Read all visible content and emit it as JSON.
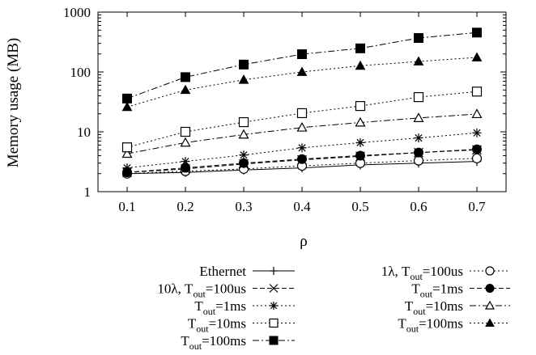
{
  "chart_data": {
    "type": "line",
    "ylabel": "Memory usage (MB)",
    "xlabel": "ρ",
    "x": [
      0.1,
      0.2,
      0.3,
      0.4,
      0.5,
      0.6,
      0.7
    ],
    "xlim": [
      0.05,
      0.75
    ],
    "ylim": [
      1,
      1000
    ],
    "yscale": "log",
    "xticks": [
      "0.1",
      "0.2",
      "0.3",
      "0.4",
      "0.5",
      "0.6",
      "0.7"
    ],
    "yticks": [
      "1",
      "10",
      "100",
      "1000"
    ],
    "grid": false,
    "legend_position": "below",
    "series": [
      {
        "name": "Ethernet",
        "marker": "plus",
        "dash": "",
        "values": [
          2.0,
          2.1,
          2.3,
          2.5,
          2.8,
          3.0,
          3.2
        ]
      },
      {
        "name": "1λ, Tout=100us",
        "marker": "circle-open",
        "dash": "2,3",
        "values": [
          2.0,
          2.2,
          2.4,
          2.7,
          3.0,
          3.3,
          3.6
        ]
      },
      {
        "name": "10λ, Tout=100us",
        "marker": "x",
        "dash": "6,3",
        "values": [
          2.1,
          2.4,
          2.9,
          3.4,
          3.9,
          4.5,
          5.0
        ]
      },
      {
        "name": "Tout=1ms",
        "marker": "circle-filled",
        "dash": "6,3",
        "values": [
          2.1,
          2.5,
          3.0,
          3.5,
          4.0,
          4.5,
          5.1
        ]
      },
      {
        "name": "Tout=1ms",
        "marker": "star",
        "dash": "2,3",
        "values": [
          2.5,
          3.2,
          4.1,
          5.4,
          6.6,
          7.9,
          9.6
        ]
      },
      {
        "name": "Tout=10ms",
        "marker": "triangle-open",
        "dash": "8,3,2,3",
        "values": [
          4.3,
          6.6,
          9.0,
          11.8,
          14.3,
          17.0,
          19.8
        ]
      },
      {
        "name": "Tout=10ms",
        "marker": "square-open",
        "dash": "2,3",
        "values": [
          5.5,
          10.0,
          14.5,
          20.5,
          27.0,
          38.0,
          47.0
        ]
      },
      {
        "name": "Tout=100ms",
        "marker": "triangle-filled",
        "dash": "2,3",
        "values": [
          26,
          50,
          74,
          100,
          127,
          150,
          175
        ]
      },
      {
        "name": "Tout=100ms",
        "marker": "square-filled",
        "dash": "8,3,2,3",
        "values": [
          36,
          82,
          133,
          198,
          248,
          370,
          455
        ]
      }
    ],
    "legend_left": [
      {
        "prefix": "Ethernet",
        "sub": "",
        "suffix": "",
        "series": 0
      },
      {
        "prefix": "10λ, T",
        "sub": "out",
        "suffix": "=100us",
        "series": 2
      },
      {
        "prefix": "T",
        "sub": "out",
        "suffix": "=1ms",
        "series": 4
      },
      {
        "prefix": "T",
        "sub": "out",
        "suffix": "=10ms",
        "series": 6
      },
      {
        "prefix": "T",
        "sub": "out",
        "suffix": "=100ms",
        "series": 8
      }
    ],
    "legend_right": [
      {
        "prefix": "1λ, T",
        "sub": "out",
        "suffix": "=100us",
        "series": 1
      },
      {
        "prefix": "T",
        "sub": "out",
        "suffix": "=1ms",
        "series": 3
      },
      {
        "prefix": "T",
        "sub": "out",
        "suffix": "=10ms",
        "series": 5
      },
      {
        "prefix": "T",
        "sub": "out",
        "suffix": "=100ms",
        "series": 7
      }
    ]
  }
}
